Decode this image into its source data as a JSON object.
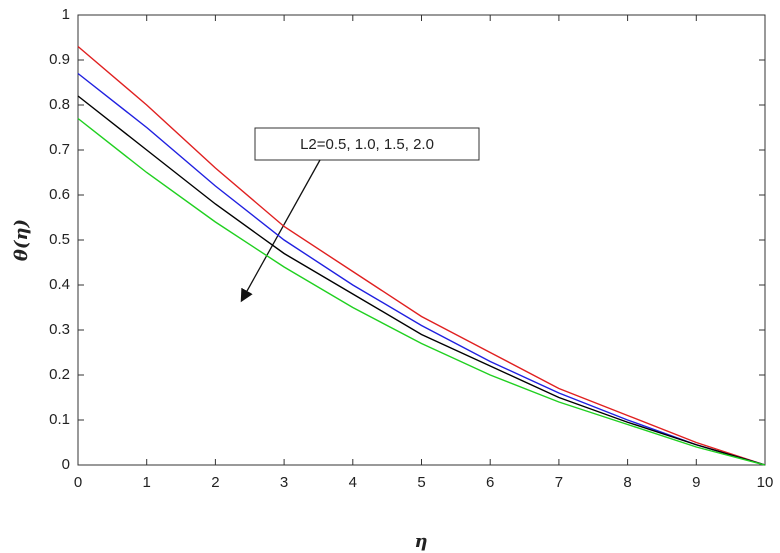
{
  "chart_data": {
    "type": "line",
    "xlabel": "η",
    "ylabel": "θ(η)",
    "annotation": "L2=0.5, 1.0, 1.5, 2.0",
    "x": [
      0,
      1,
      2,
      3,
      4,
      5,
      6,
      7,
      8,
      9,
      10
    ],
    "series": [
      {
        "color": "#e02020",
        "values": [
          0.93,
          0.8,
          0.66,
          0.53,
          0.43,
          0.33,
          0.25,
          0.17,
          0.11,
          0.05,
          0
        ]
      },
      {
        "color": "#2020e0",
        "values": [
          0.87,
          0.75,
          0.62,
          0.5,
          0.4,
          0.31,
          0.23,
          0.16,
          0.1,
          0.045,
          0
        ]
      },
      {
        "color": "#000000",
        "values": [
          0.82,
          0.7,
          0.58,
          0.47,
          0.38,
          0.29,
          0.22,
          0.15,
          0.095,
          0.045,
          0
        ]
      },
      {
        "color": "#20d020",
        "values": [
          0.77,
          0.65,
          0.54,
          0.44,
          0.35,
          0.27,
          0.2,
          0.14,
          0.09,
          0.04,
          0
        ]
      }
    ],
    "xlim": [
      0,
      10
    ],
    "xticks": [
      0,
      1,
      2,
      3,
      4,
      5,
      6,
      7,
      8,
      9,
      10
    ],
    "ylim": [
      0,
      1
    ],
    "yticks": [
      0,
      0.1,
      0.2,
      0.3,
      0.4,
      0.5,
      0.6,
      0.7,
      0.8,
      0.9,
      1
    ],
    "grid": false
  }
}
